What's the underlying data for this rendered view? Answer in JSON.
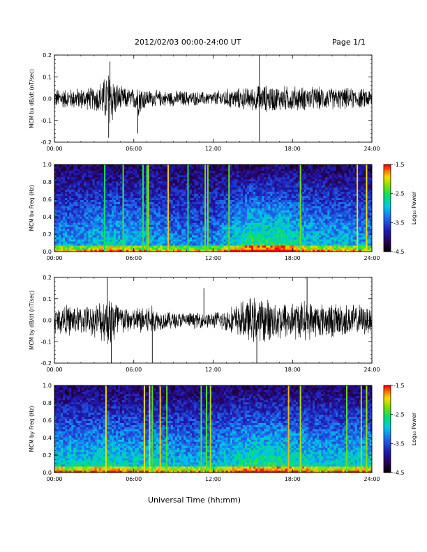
{
  "header": {
    "date_label": "2012/02/03  00:00-24:00 UT",
    "page_label": "Page 1/1"
  },
  "footer": {
    "xlabel": "Universal Time (hh:mm)"
  },
  "colors": {
    "trace": "#000000",
    "background": "#ffffff"
  },
  "chart_data": [
    {
      "type": "line",
      "ylabel": "MCM bx dB/dt (nT/sec)",
      "ylim": [
        -0.2,
        0.2
      ],
      "yticks": [
        "-0.2",
        "-0.1",
        "0.0",
        "0.1",
        "0.2"
      ],
      "xticks": [
        "00:00",
        "06:00",
        "12:00",
        "18:00",
        "24:00"
      ],
      "x_hours": [
        0,
        24
      ],
      "envelope": {
        "hours": [
          0,
          1,
          2,
          3,
          3.8,
          4.2,
          4.6,
          5,
          6,
          6.3,
          7,
          8,
          9,
          10,
          11,
          12,
          13,
          14,
          15,
          15.5,
          16,
          17,
          18,
          19,
          20,
          21,
          22,
          23,
          24
        ],
        "amplitude": [
          0.05,
          0.05,
          0.055,
          0.06,
          0.11,
          0.16,
          0.09,
          0.06,
          0.05,
          0.09,
          0.045,
          0.04,
          0.04,
          0.04,
          0.035,
          0.035,
          0.05,
          0.055,
          0.06,
          0.07,
          0.07,
          0.065,
          0.065,
          0.06,
          0.06,
          0.055,
          0.055,
          0.05,
          0.05
        ]
      },
      "spikes": [
        {
          "hour": 4.1,
          "value": -0.18
        },
        {
          "hour": 6.3,
          "value": -0.16
        },
        {
          "hour": 15.5,
          "value": -0.2
        },
        {
          "hour": 15.5,
          "value": 0.21
        },
        {
          "hour": 4.2,
          "value": 0.17
        }
      ]
    },
    {
      "type": "heatmap",
      "ylabel": "MCM bx Freq (Hz)",
      "ylim": [
        0,
        1.0
      ],
      "yticks": [
        "0.0",
        "0.2",
        "0.4",
        "0.6",
        "0.8",
        "1.0"
      ],
      "xticks": [
        "00:00",
        "06:00",
        "12:00",
        "18:00",
        "24:00"
      ],
      "colorbar": {
        "label": "Log₁₀ Power",
        "ticks": [
          "-1.5",
          "-2.5",
          "-3.5",
          "-4.5"
        ],
        "range": [
          -4.5,
          -1.5
        ]
      },
      "activity": {
        "hours": [
          0,
          2,
          4,
          6,
          8,
          10,
          12,
          13,
          14,
          15,
          16,
          17,
          18,
          19,
          20,
          21,
          22,
          23,
          24
        ],
        "level": [
          0.35,
          0.35,
          0.45,
          0.4,
          0.35,
          0.3,
          0.3,
          0.4,
          0.5,
          0.6,
          0.55,
          0.6,
          0.5,
          0.45,
          0.4,
          0.4,
          0.4,
          0.35,
          0.35
        ]
      },
      "bright_lines_hours": [
        3.8,
        5.2,
        6.7,
        7.0,
        7.1,
        8.6,
        10.1,
        11.4,
        11.6,
        13.2,
        18.6,
        22.9,
        23.6
      ]
    },
    {
      "type": "line",
      "ylabel": "MCM by dB/dt (nT/sec)",
      "ylim": [
        -0.2,
        0.2
      ],
      "yticks": [
        "-0.2",
        "-0.1",
        "0.0",
        "0.1",
        "0.2"
      ],
      "xticks": [
        "00:00",
        "06:00",
        "12:00",
        "18:00",
        "24:00"
      ],
      "x_hours": [
        0,
        24
      ],
      "envelope": {
        "hours": [
          0,
          1,
          2,
          3,
          4,
          4.5,
          5,
          6,
          7,
          8,
          9,
          10,
          11,
          12,
          13,
          14,
          15,
          16,
          17,
          18,
          19,
          20,
          21,
          22,
          23,
          24
        ],
        "amplitude": [
          0.07,
          0.08,
          0.07,
          0.08,
          0.13,
          0.15,
          0.08,
          0.06,
          0.09,
          0.05,
          0.045,
          0.04,
          0.04,
          0.04,
          0.06,
          0.09,
          0.12,
          0.11,
          0.1,
          0.1,
          0.1,
          0.09,
          0.09,
          0.085,
          0.08,
          0.07
        ]
      },
      "spikes": [
        {
          "hour": 4.3,
          "value": -0.2
        },
        {
          "hour": 7.4,
          "value": -0.2
        },
        {
          "hour": 4.0,
          "value": 0.2
        },
        {
          "hour": 15.3,
          "value": -0.2
        },
        {
          "hour": 11.3,
          "value": 0.15
        },
        {
          "hour": 19.1,
          "value": 0.21
        }
      ]
    },
    {
      "type": "heatmap",
      "ylabel": "MCM by Freq (Hz)",
      "ylim": [
        0,
        1.0
      ],
      "yticks": [
        "0.0",
        "0.2",
        "0.4",
        "0.6",
        "0.8",
        "1.0"
      ],
      "xticks": [
        "00:00",
        "06:00",
        "12:00",
        "18:00",
        "24:00"
      ],
      "colorbar": {
        "label": "Log₁₀ Power",
        "ticks": [
          "-1.5",
          "-2.5",
          "-3.5",
          "-4.5"
        ],
        "range": [
          -4.5,
          -1.5
        ]
      },
      "activity": {
        "hours": [
          0,
          2,
          4,
          6,
          8,
          10,
          12,
          13,
          14,
          15,
          16,
          17,
          18,
          19,
          20,
          21,
          22,
          23,
          24
        ],
        "level": [
          0.45,
          0.45,
          0.5,
          0.45,
          0.45,
          0.4,
          0.4,
          0.45,
          0.5,
          0.55,
          0.55,
          0.55,
          0.5,
          0.5,
          0.45,
          0.45,
          0.45,
          0.45,
          0.45
        ]
      },
      "bright_lines_hours": [
        3.9,
        6.8,
        7.2,
        7.4,
        8.0,
        8.5,
        11.1,
        11.5,
        11.8,
        17.7,
        18.6,
        22.1,
        23.2,
        23.6
      ]
    }
  ]
}
